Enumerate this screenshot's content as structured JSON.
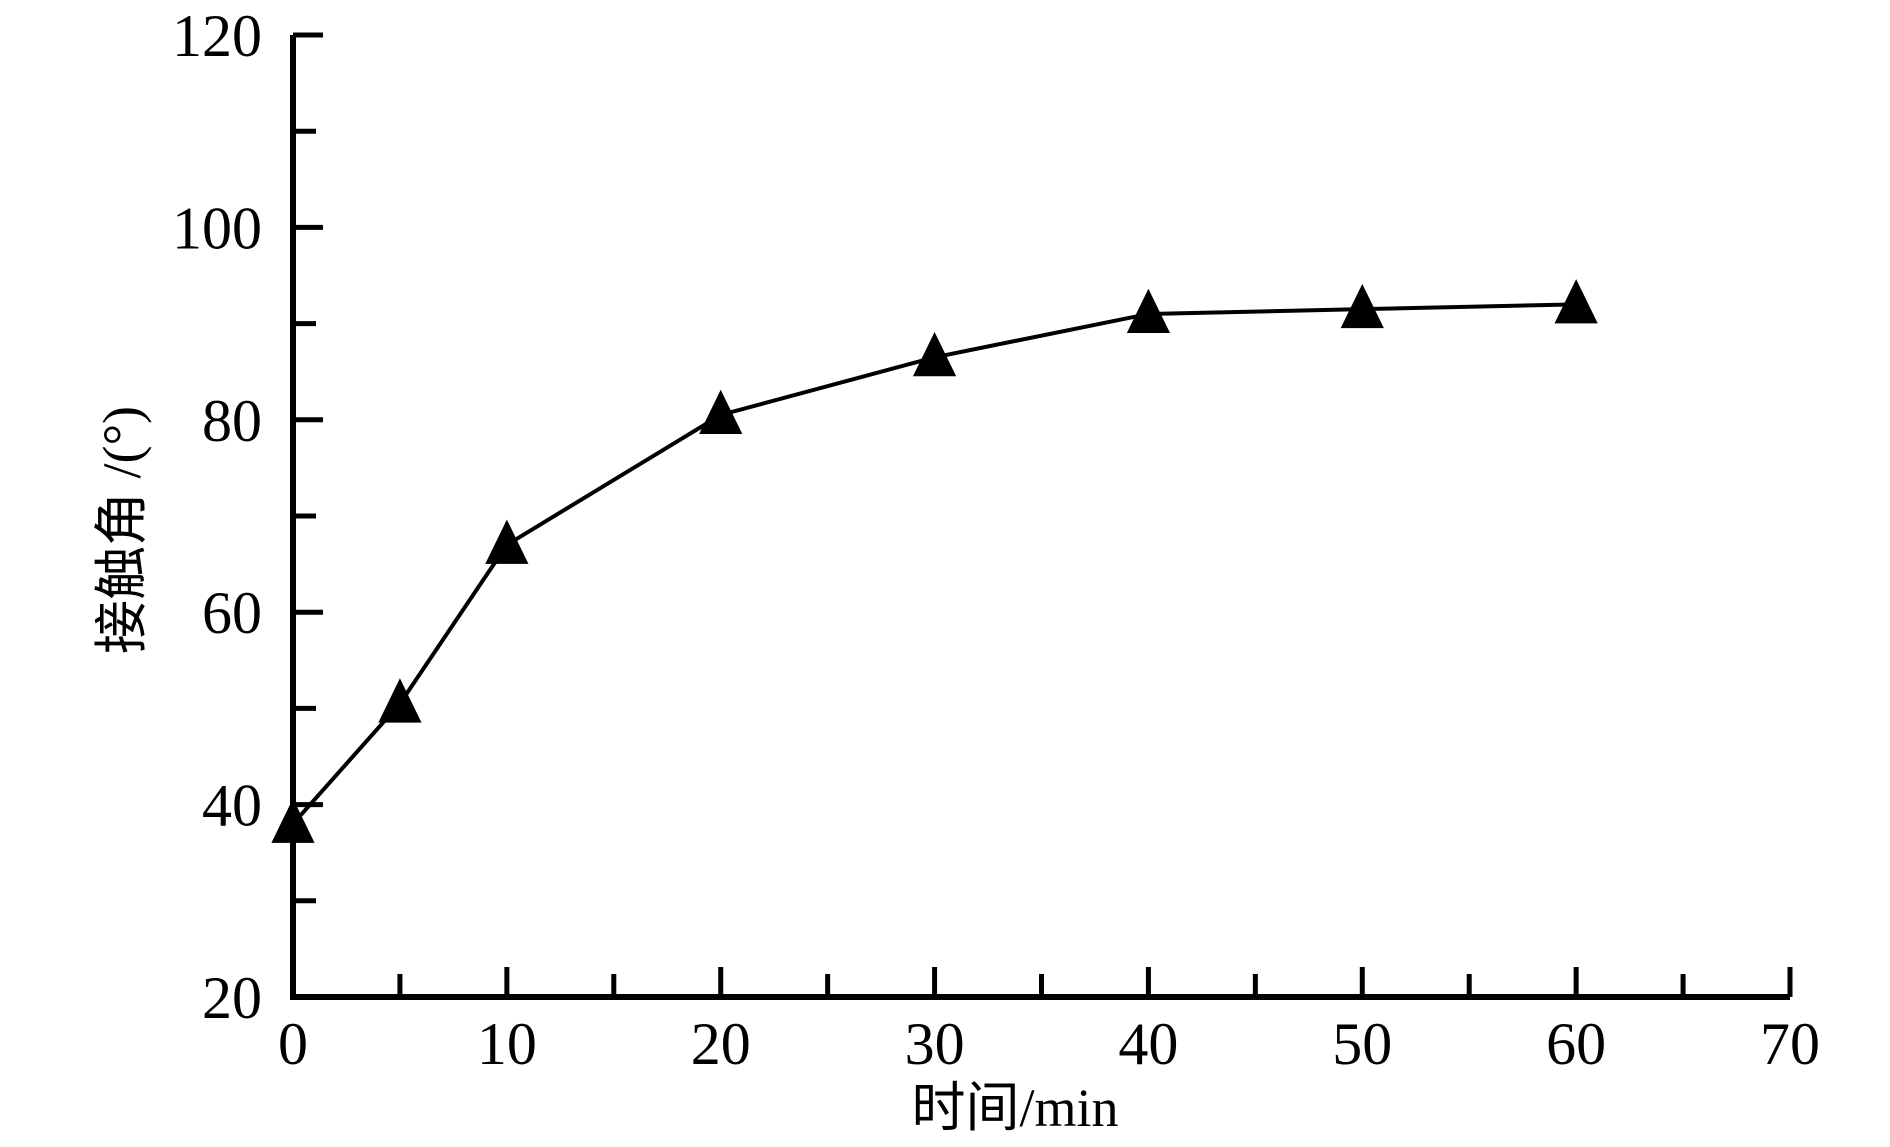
{
  "chart_data": {
    "type": "line",
    "title": "",
    "series": [
      {
        "name": "接触角",
        "marker": "triangle-up",
        "color": "#000000",
        "line_width": 4,
        "x": [
          0,
          5,
          10,
          20,
          30,
          40,
          50,
          60
        ],
        "y": [
          38,
          50.5,
          67,
          80.5,
          86.5,
          91,
          91.5,
          92
        ]
      }
    ],
    "axes": {
      "x": {
        "label": "时间/min",
        "min": 0,
        "max": 70,
        "major_ticks": [
          0,
          10,
          20,
          30,
          40,
          50,
          60,
          70
        ],
        "minor_ticks": [
          5,
          15,
          25,
          35,
          45,
          55,
          65
        ],
        "tick_labels": [
          "0",
          "10",
          "20",
          "30",
          "40",
          "50",
          "60",
          "70"
        ]
      },
      "y": {
        "label": "接触角 /(°)",
        "min": 20,
        "max": 120,
        "major_ticks": [
          20,
          40,
          60,
          80,
          100,
          120
        ],
        "minor_ticks": [
          30,
          50,
          70,
          90,
          110
        ],
        "tick_labels": [
          "20",
          "40",
          "60",
          "80",
          "100",
          "120"
        ]
      }
    },
    "grid": false,
    "legend": false,
    "spines": [
      "left",
      "bottom"
    ],
    "tick_direction": "in",
    "colors": {
      "background": "#ffffff",
      "axis": "#000000",
      "text": "#000000",
      "line": "#000000",
      "marker": "#000000"
    }
  }
}
